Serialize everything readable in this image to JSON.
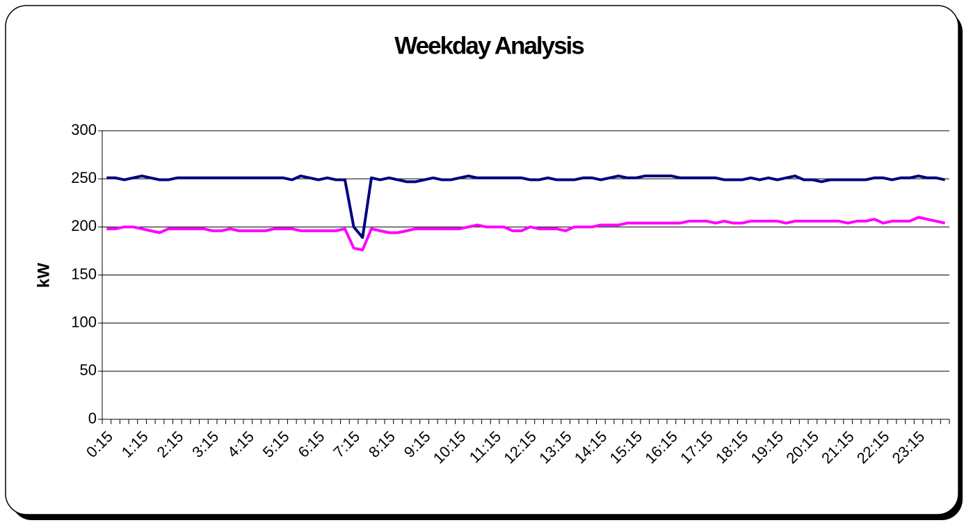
{
  "chart_data": {
    "type": "line",
    "title": "Weekday Analysis",
    "y_label": "kW",
    "categories": [
      "0:15",
      null,
      null,
      null,
      "1:15",
      null,
      null,
      null,
      "2:15",
      null,
      null,
      null,
      "3:15",
      null,
      null,
      null,
      "4:15",
      null,
      null,
      null,
      "5:15",
      null,
      null,
      null,
      "6:15",
      null,
      null,
      null,
      "7:15",
      null,
      null,
      null,
      "8:15",
      null,
      null,
      null,
      "9:15",
      null,
      null,
      null,
      "10:15",
      null,
      null,
      null,
      "11:15",
      null,
      null,
      null,
      "12:15",
      null,
      null,
      null,
      "13:15",
      null,
      null,
      null,
      "14:15",
      null,
      null,
      null,
      "15:15",
      null,
      null,
      null,
      "16:15",
      null,
      null,
      null,
      "17:15",
      null,
      null,
      null,
      "18:15",
      null,
      null,
      null,
      "19:15",
      null,
      null,
      null,
      "20:15",
      null,
      null,
      null,
      "21:15",
      null,
      null,
      null,
      "22:15",
      null,
      null,
      null,
      "23:15",
      null,
      null,
      null
    ],
    "series": [
      {
        "color": "#000080",
        "values": [
          251,
          251,
          249,
          251,
          253,
          251,
          249,
          249,
          251,
          251,
          251,
          251,
          251,
          251,
          251,
          251,
          251,
          251,
          251,
          251,
          251,
          249,
          253,
          251,
          249,
          251,
          249,
          249,
          200,
          189,
          251,
          249,
          251,
          249,
          247,
          247,
          249,
          251,
          249,
          249,
          251,
          253,
          251,
          251,
          251,
          251,
          251,
          251,
          249,
          249,
          251,
          249,
          249,
          249,
          251,
          251,
          249,
          251,
          253,
          251,
          251,
          253,
          253,
          253,
          253,
          251,
          251,
          251,
          251,
          251,
          249,
          249,
          249,
          251,
          249,
          251,
          249,
          251,
          253,
          249,
          249,
          247,
          249,
          249,
          249,
          249,
          249,
          251,
          251,
          249,
          251,
          251,
          253,
          251,
          251,
          249
        ]
      },
      {
        "color": "#ff00ff",
        "values": [
          198,
          198,
          200,
          200,
          198,
          196,
          194,
          198,
          198,
          198,
          198,
          198,
          196,
          196,
          198,
          196,
          196,
          196,
          196,
          198,
          198,
          198,
          196,
          196,
          196,
          196,
          196,
          198,
          178,
          176,
          198,
          196,
          194,
          194,
          196,
          198,
          198,
          198,
          198,
          198,
          198,
          200,
          202,
          200,
          200,
          200,
          196,
          196,
          200,
          198,
          198,
          198,
          196,
          200,
          200,
          200,
          202,
          202,
          202,
          204,
          204,
          204,
          204,
          204,
          204,
          204,
          206,
          206,
          206,
          204,
          206,
          204,
          204,
          206,
          206,
          206,
          206,
          204,
          206,
          206,
          206,
          206,
          206,
          206,
          204,
          206,
          206,
          208,
          204,
          206,
          206,
          206,
          210,
          208,
          206,
          204
        ]
      }
    ],
    "ylim": [
      0,
      300
    ],
    "yticks": [
      0,
      50,
      100,
      150,
      200,
      250,
      300
    ],
    "grid": true
  }
}
